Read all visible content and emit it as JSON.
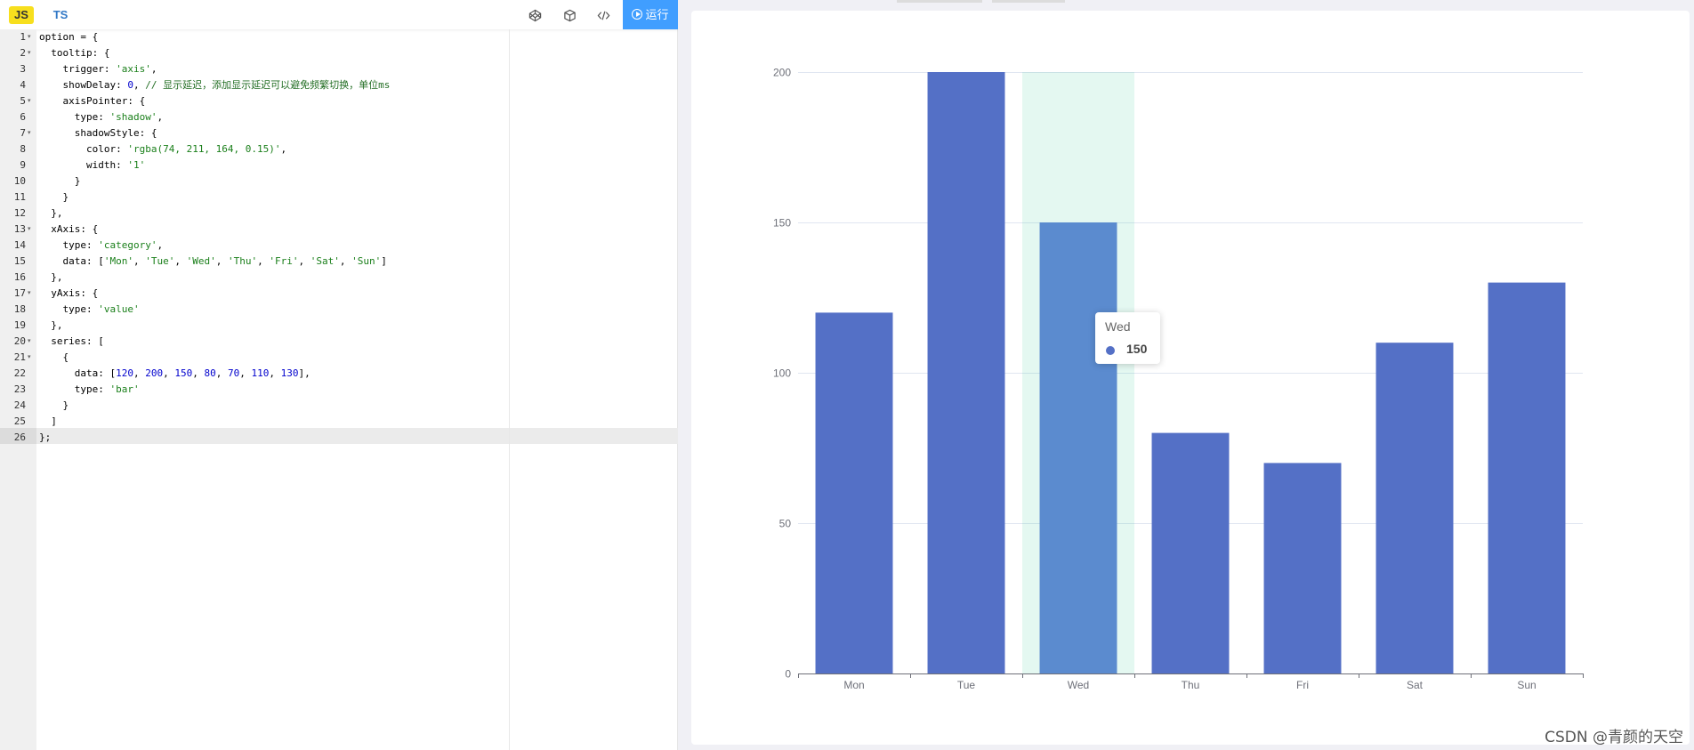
{
  "toolbar": {
    "js_label": "JS",
    "ts_label": "TS",
    "run_label": "运行",
    "icons": [
      "codepen-icon",
      "box-icon",
      "code-icon"
    ]
  },
  "editor": {
    "active_line": 26,
    "lines": [
      [
        {
          "t": "option = {",
          "c": "key"
        }
      ],
      [
        {
          "t": "  tooltip: {",
          "c": "key"
        }
      ],
      [
        {
          "t": "    trigger: ",
          "c": "key"
        },
        {
          "t": "'axis'",
          "c": "str"
        },
        {
          "t": ",",
          "c": "key"
        }
      ],
      [
        {
          "t": "    showDelay: ",
          "c": "key"
        },
        {
          "t": "0",
          "c": "num"
        },
        {
          "t": ", ",
          "c": "key"
        },
        {
          "t": "// 显示延迟，添加显示延迟可以避免频繁切换，单位ms",
          "c": "cmt"
        }
      ],
      [
        {
          "t": "    axisPointer: {",
          "c": "key"
        }
      ],
      [
        {
          "t": "      type: ",
          "c": "key"
        },
        {
          "t": "'shadow'",
          "c": "str"
        },
        {
          "t": ",",
          "c": "key"
        }
      ],
      [
        {
          "t": "      shadowStyle: {",
          "c": "key"
        }
      ],
      [
        {
          "t": "        color: ",
          "c": "key"
        },
        {
          "t": "'rgba(74, 211, 164, 0.15)'",
          "c": "str"
        },
        {
          "t": ",",
          "c": "key"
        }
      ],
      [
        {
          "t": "        width: ",
          "c": "key"
        },
        {
          "t": "'1'",
          "c": "str"
        }
      ],
      [
        {
          "t": "      }",
          "c": "key"
        }
      ],
      [
        {
          "t": "    }",
          "c": "key"
        }
      ],
      [
        {
          "t": "  },",
          "c": "key"
        }
      ],
      [
        {
          "t": "  xAxis: {",
          "c": "key"
        }
      ],
      [
        {
          "t": "    type: ",
          "c": "key"
        },
        {
          "t": "'category'",
          "c": "str"
        },
        {
          "t": ",",
          "c": "key"
        }
      ],
      [
        {
          "t": "    data: [",
          "c": "key"
        },
        {
          "t": "'Mon'",
          "c": "str"
        },
        {
          "t": ", ",
          "c": "key"
        },
        {
          "t": "'Tue'",
          "c": "str"
        },
        {
          "t": ", ",
          "c": "key"
        },
        {
          "t": "'Wed'",
          "c": "str"
        },
        {
          "t": ", ",
          "c": "key"
        },
        {
          "t": "'Thu'",
          "c": "str"
        },
        {
          "t": ", ",
          "c": "key"
        },
        {
          "t": "'Fri'",
          "c": "str"
        },
        {
          "t": ", ",
          "c": "key"
        },
        {
          "t": "'Sat'",
          "c": "str"
        },
        {
          "t": ", ",
          "c": "key"
        },
        {
          "t": "'Sun'",
          "c": "str"
        },
        {
          "t": "]",
          "c": "key"
        }
      ],
      [
        {
          "t": "  },",
          "c": "key"
        }
      ],
      [
        {
          "t": "  yAxis: {",
          "c": "key"
        }
      ],
      [
        {
          "t": "    type: ",
          "c": "key"
        },
        {
          "t": "'value'",
          "c": "str"
        }
      ],
      [
        {
          "t": "  },",
          "c": "key"
        }
      ],
      [
        {
          "t": "  series: [",
          "c": "key"
        }
      ],
      [
        {
          "t": "    {",
          "c": "key"
        }
      ],
      [
        {
          "t": "      data: [",
          "c": "key"
        },
        {
          "t": "120",
          "c": "num"
        },
        {
          "t": ", ",
          "c": "key"
        },
        {
          "t": "200",
          "c": "num"
        },
        {
          "t": ", ",
          "c": "key"
        },
        {
          "t": "150",
          "c": "num"
        },
        {
          "t": ", ",
          "c": "key"
        },
        {
          "t": "80",
          "c": "num"
        },
        {
          "t": ", ",
          "c": "key"
        },
        {
          "t": "70",
          "c": "num"
        },
        {
          "t": ", ",
          "c": "key"
        },
        {
          "t": "110",
          "c": "num"
        },
        {
          "t": ", ",
          "c": "key"
        },
        {
          "t": "130",
          "c": "num"
        },
        {
          "t": "],",
          "c": "key"
        }
      ],
      [
        {
          "t": "      type: ",
          "c": "key"
        },
        {
          "t": "'bar'",
          "c": "str"
        }
      ],
      [
        {
          "t": "    }",
          "c": "key"
        }
      ],
      [
        {
          "t": "  ]",
          "c": "key"
        }
      ],
      [
        {
          "t": "};",
          "c": "key"
        }
      ]
    ],
    "foldable_lines": [
      1,
      2,
      5,
      7,
      13,
      17,
      20,
      21
    ]
  },
  "chart_data": {
    "type": "bar",
    "categories": [
      "Mon",
      "Tue",
      "Wed",
      "Thu",
      "Fri",
      "Sat",
      "Sun"
    ],
    "values": [
      120,
      200,
      150,
      80,
      70,
      110,
      130
    ],
    "yticks": [
      0,
      50,
      100,
      150,
      200
    ],
    "ylim": [
      0,
      200
    ],
    "title": "",
    "xlabel": "",
    "ylabel": "",
    "grid": true,
    "bar_color": "#5470c6",
    "highlight_bar_color": "#5b8bcf",
    "axis_pointer": {
      "type": "shadow",
      "category": "Wed",
      "color": "rgba(74, 211, 164, 0.15)"
    }
  },
  "tooltip": {
    "title": "Wed",
    "value": "150",
    "dot_color": "#5470c6"
  },
  "watermark": "CSDN @青颜的天空"
}
